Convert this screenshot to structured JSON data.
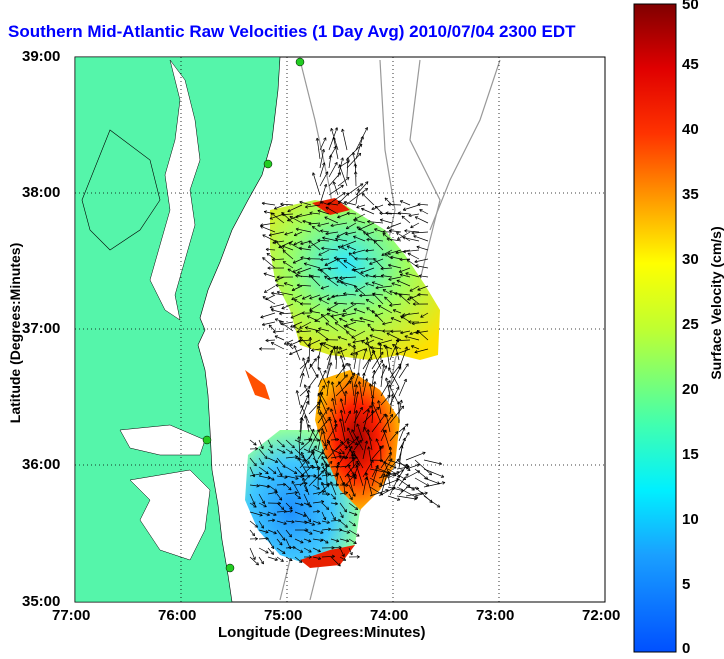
{
  "title": "Southern Mid-Atlantic Raw Velocities (1 Day Avg) 2010/07/04 2300 EDT",
  "axes": {
    "xlabel": "Longitude (Degrees:Minutes)",
    "ylabel": "Latitude (Degrees:Minutes)",
    "xticks": [
      "77:00",
      "76:00",
      "75:00",
      "74:00",
      "73:00",
      "72:00"
    ],
    "yticks": [
      "39:00",
      "38:00",
      "37:00",
      "36:00",
      "35:00"
    ]
  },
  "colorbar": {
    "label": "Surface Velocity (cm/s)",
    "ticks": [
      "0",
      "5",
      "10",
      "15",
      "20",
      "25",
      "30",
      "35",
      "40",
      "45",
      "50"
    ],
    "min": 0,
    "max": 50
  },
  "colors": {
    "land": "#55f5aa",
    "water": "#ffffff",
    "title": "#0000ff",
    "station": "#22cc22"
  }
}
